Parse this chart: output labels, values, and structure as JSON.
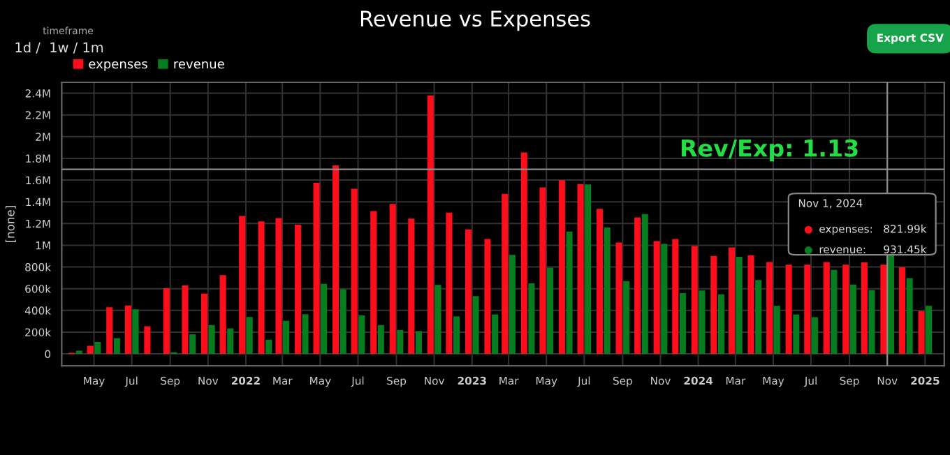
{
  "chart_data": {
    "type": "bar",
    "title": "Revenue vs Expenses",
    "ylabel": "[none]",
    "x": [
      "2021-04",
      "2021-05",
      "2021-06",
      "2021-07",
      "2021-08",
      "2021-09",
      "2021-10",
      "2021-11",
      "2021-12",
      "2022-01",
      "2022-02",
      "2022-03",
      "2022-04",
      "2022-05",
      "2022-06",
      "2022-07",
      "2022-08",
      "2022-09",
      "2022-10",
      "2022-11",
      "2022-12",
      "2023-01",
      "2023-02",
      "2023-03",
      "2023-04",
      "2023-05",
      "2023-06",
      "2023-07",
      "2023-08",
      "2023-09",
      "2023-10",
      "2023-11",
      "2023-12",
      "2024-01",
      "2024-02",
      "2024-03",
      "2024-04",
      "2024-05",
      "2024-06",
      "2024-07",
      "2024-08",
      "2024-09",
      "2024-10",
      "2024-11",
      "2024-12",
      "2025-01"
    ],
    "series": [
      {
        "name": "expenses",
        "color": "#ff0d1a",
        "values": [
          10000,
          75000,
          430000,
          445000,
          255000,
          605000,
          630000,
          555000,
          725000,
          1270000,
          1220000,
          1250000,
          1190000,
          1575000,
          1735000,
          1520000,
          1315000,
          1380000,
          1245000,
          2380000,
          1300000,
          1146000,
          1057000,
          1474000,
          1854000,
          1533000,
          1599000,
          1564000,
          1336000,
          1026000,
          1257000,
          1039000,
          1057000,
          994000,
          901000,
          981000,
          908000,
          846000,
          822000,
          822000,
          846000,
          822000,
          843000,
          821990,
          798000,
          394000
        ]
      },
      {
        "name": "revenue",
        "color": "#067d1e",
        "values": [
          30000,
          110000,
          145000,
          410000,
          null,
          15000,
          180000,
          265000,
          235000,
          340000,
          130000,
          305000,
          365000,
          645000,
          595000,
          355000,
          265000,
          220000,
          210000,
          635000,
          345000,
          532000,
          363000,
          912000,
          649000,
          794000,
          1126000,
          1561000,
          1164000,
          670000,
          1288000,
          1012000,
          559000,
          584000,
          549000,
          894000,
          680000,
          442000,
          363000,
          338000,
          773000,
          639000,
          587000,
          931450,
          698000,
          442000
        ]
      }
    ],
    "xlim": [
      "2021-03-10",
      "2025-02-01"
    ],
    "xticks": [
      {
        "value": "2021-05",
        "label": "May"
      },
      {
        "value": "2021-07",
        "label": "Jul"
      },
      {
        "value": "2021-09",
        "label": "Sep"
      },
      {
        "value": "2021-11",
        "label": "Nov"
      },
      {
        "value": "2022-01",
        "label": "2022"
      },
      {
        "value": "2022-03",
        "label": "Mar"
      },
      {
        "value": "2022-05",
        "label": "May"
      },
      {
        "value": "2022-07",
        "label": "Jul"
      },
      {
        "value": "2022-09",
        "label": "Sep"
      },
      {
        "value": "2022-11",
        "label": "Nov"
      },
      {
        "value": "2023-01",
        "label": "2023"
      },
      {
        "value": "2023-03",
        "label": "Mar"
      },
      {
        "value": "2023-05",
        "label": "May"
      },
      {
        "value": "2023-07",
        "label": "Jul"
      },
      {
        "value": "2023-09",
        "label": "Sep"
      },
      {
        "value": "2023-11",
        "label": "Nov"
      },
      {
        "value": "2024-01",
        "label": "2024"
      },
      {
        "value": "2024-03",
        "label": "Mar"
      },
      {
        "value": "2024-05",
        "label": "May"
      },
      {
        "value": "2024-07",
        "label": "Jul"
      },
      {
        "value": "2024-09",
        "label": "Sep"
      },
      {
        "value": "2024-11",
        "label": "Nov"
      },
      {
        "value": "2025-01",
        "label": "2025"
      }
    ],
    "ylim": [
      -110000,
      2500000
    ],
    "yticks": [
      {
        "value": 0,
        "label": "0"
      },
      {
        "value": 200000,
        "label": "200k"
      },
      {
        "value": 400000,
        "label": "400k"
      },
      {
        "value": 600000,
        "label": "600k"
      },
      {
        "value": 800000,
        "label": "800k"
      },
      {
        "value": 1000000,
        "label": "1M"
      },
      {
        "value": 1200000,
        "label": "1.2M"
      },
      {
        "value": 1400000,
        "label": "1.4M"
      },
      {
        "value": 1600000,
        "label": "1.6M"
      },
      {
        "value": 1800000,
        "label": "1.8M"
      },
      {
        "value": 2000000,
        "label": "2M"
      },
      {
        "value": 2200000,
        "label": "2.2M"
      },
      {
        "value": 2400000,
        "label": "2.4M"
      }
    ],
    "ref_lines": [
      {
        "axis": "y",
        "value": 1700000,
        "color": "#8c8c8c"
      },
      {
        "axis": "x",
        "value": "2024-11",
        "color": "#8c8c8c"
      }
    ],
    "grid": true,
    "legend": "top left",
    "annotations": [
      "timeframe",
      "1d /  1w / 1m",
      "Export CSV",
      "Rev/Exp: 1.13",
      "Nov 1, 2024",
      "expenses:   821.99k",
      "revenue:     931.45k"
    ]
  }
}
